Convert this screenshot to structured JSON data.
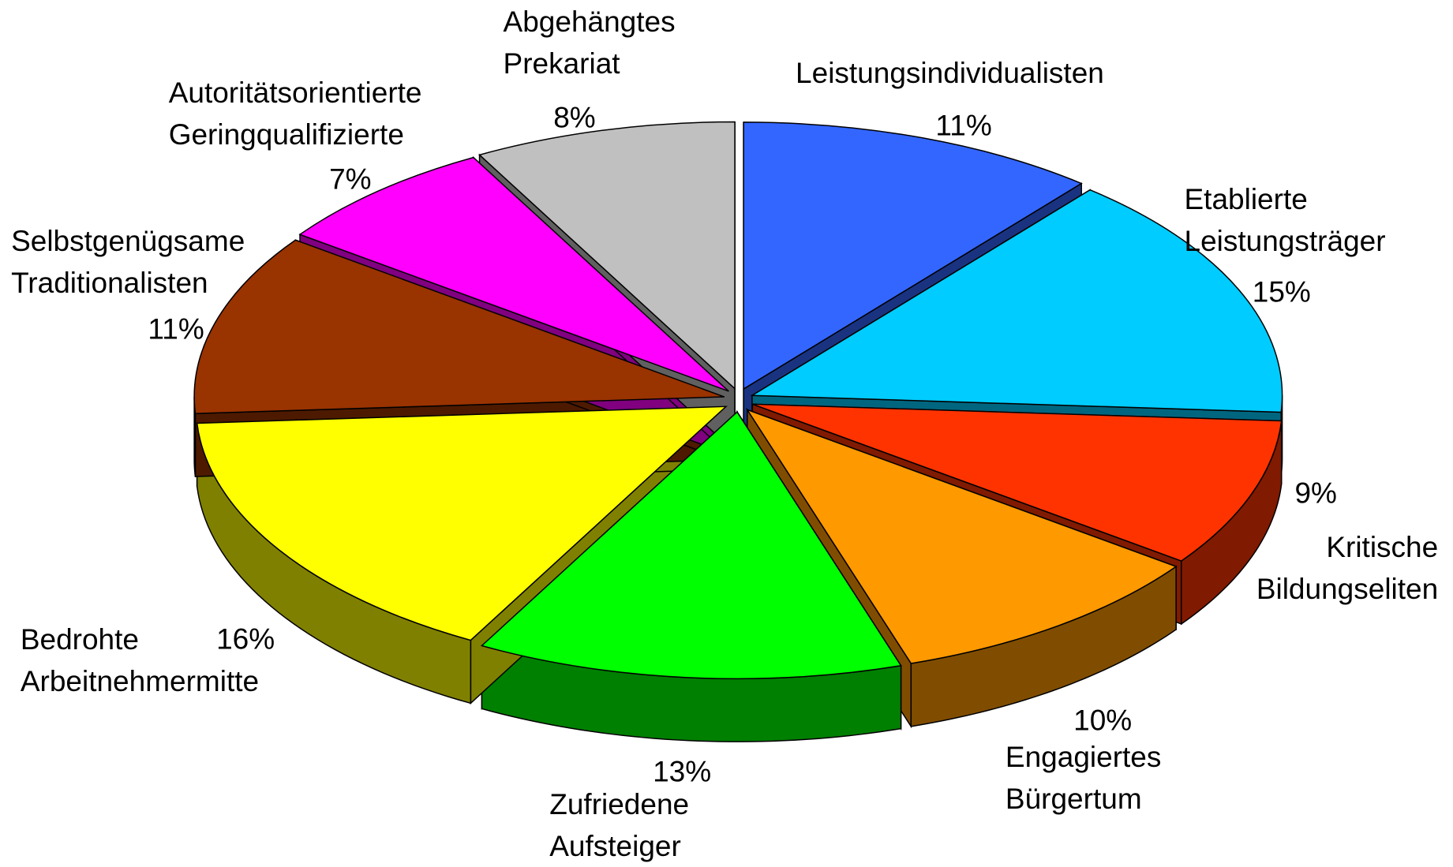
{
  "chart_data": {
    "type": "pie",
    "categories": [
      "Leistungsindividualisten",
      "Etablierte Leistungsträger",
      "Kritische Bildungseliten",
      "Engagiertes Bürgertum",
      "Zufriedene Aufsteiger",
      "Bedrohte Arbeitnehmermitte",
      "Selbstgenügsame Traditionalisten",
      "Autoritätsorientierte Geringqualifizierte",
      "Abgehängtes Prekariat"
    ],
    "values": [
      11,
      15,
      9,
      10,
      13,
      16,
      11,
      7,
      8
    ],
    "value_labels": [
      "11%",
      "15%",
      "9%",
      "10%",
      "13%",
      "16%",
      "11%",
      "7%",
      "8%"
    ],
    "colors": [
      "#3366ff",
      "#00ccff",
      "#ff3300",
      "#ff9900",
      "#00ff00",
      "#ffff00",
      "#993300",
      "#ff00ff",
      "#c0c0c0"
    ]
  }
}
